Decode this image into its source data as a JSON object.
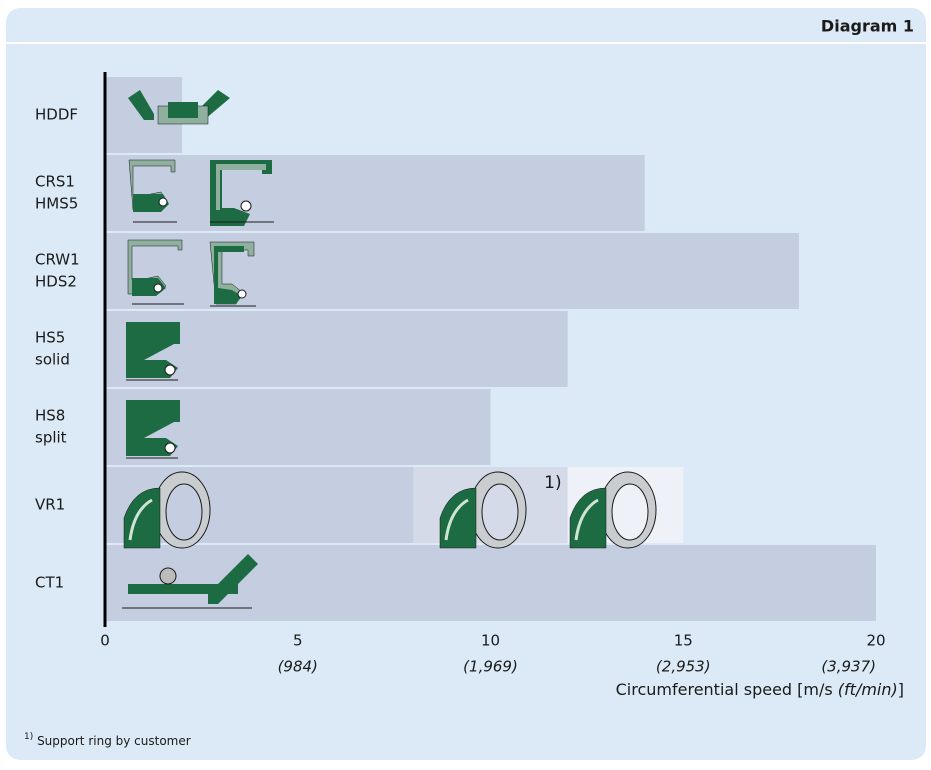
{
  "header": "Diagram 1",
  "chart_data": {
    "type": "bar",
    "orientation": "horizontal",
    "categories": [
      [
        "HDDF"
      ],
      [
        "CRS1",
        "HMS5"
      ],
      [
        "CRW1",
        "HDS2"
      ],
      [
        "HS5",
        "solid"
      ],
      [
        "HS8",
        "split"
      ],
      [
        "VR1"
      ],
      [
        "CT1"
      ]
    ],
    "series": [
      {
        "color": "#c4cee0",
        "values": [
          2,
          14,
          18,
          12,
          10,
          8,
          20
        ]
      },
      {
        "color": "#d4dae8",
        "values": [
          null,
          null,
          null,
          null,
          null,
          4,
          null
        ],
        "note": "1)"
      },
      {
        "color": "#eef1f7",
        "values": [
          null,
          null,
          null,
          null,
          null,
          3,
          null
        ]
      }
    ],
    "xlim": [
      0,
      20
    ],
    "xticks": [
      0,
      5,
      10,
      15,
      20
    ],
    "xticks_secondary": [
      {
        "value": 5,
        "label": "(984)"
      },
      {
        "value": 10,
        "label": "(1,969)"
      },
      {
        "value": 15,
        "label": "(2,953)"
      },
      {
        "value": 20,
        "label": "(3,937)"
      }
    ],
    "xlabel": {
      "text": "Circumferential speed [m/s ",
      "italic": "(ft/min)",
      "end": "]"
    }
  },
  "footnote": {
    "marker": "1)",
    "text": " Support ring by customer"
  }
}
